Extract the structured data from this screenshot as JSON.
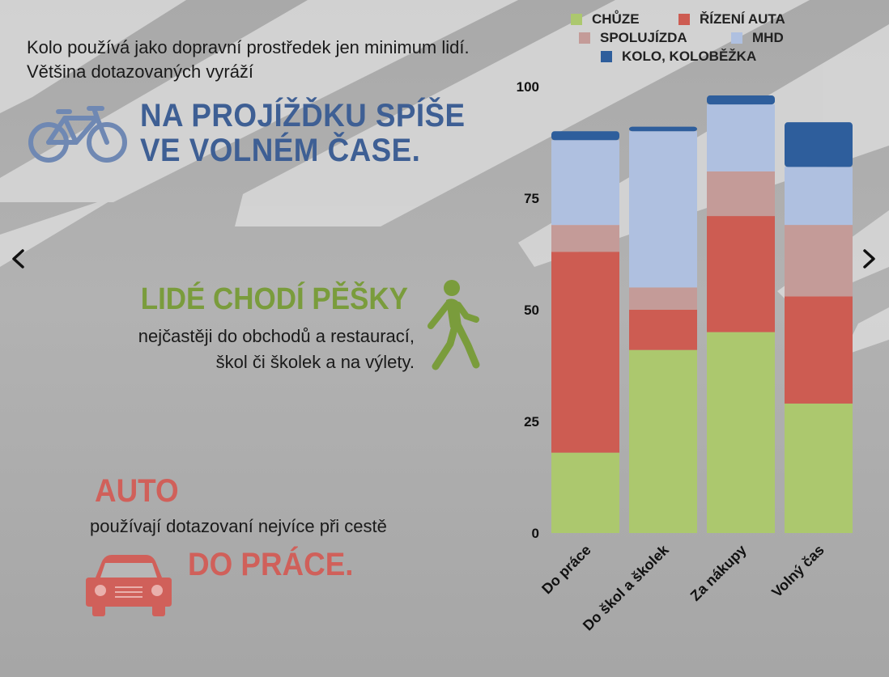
{
  "intro_text": "Kolo používá jako dopravní prostředek jen minimum lidí. Většina dotazovaných vyráží",
  "headline_bike_line1": "NA PROJÍŽĎKU SPÍŠE",
  "headline_bike_line2": "VE VOLNÉM ČASE.",
  "headline_walk": "LIDÉ CHODÍ PĚŠKY",
  "walk_text_line1": "nejčastěji do obchodů a restaurací,",
  "walk_text_line2": "škol či školek a na výlety.",
  "headline_auto": "AUTO",
  "auto_text": "používají dotazovaní nejvíce při cestě",
  "headline_auto2": "DO PRÁCE.",
  "icons": {
    "bike": "bicycle-icon",
    "walk": "walking-person-icon",
    "car": "car-icon",
    "prev": "chevron-left-icon",
    "next": "chevron-right-icon"
  },
  "colors": {
    "bike_headline": "#3e5f94",
    "walk_headline": "#7a9c3c",
    "auto_headline": "#d0605a"
  },
  "chart_data": {
    "type": "bar",
    "stacked": true,
    "categories": [
      "Do práce",
      "Do škol a školek",
      "Za nákupy",
      "Volný čas"
    ],
    "series": [
      {
        "name": "CHŮZE",
        "color": "#acc86e",
        "values": [
          18,
          41,
          45,
          29
        ]
      },
      {
        "name": "ŘÍZENÍ AUTA",
        "color": "#cd5c52",
        "values": [
          45,
          9,
          26,
          24
        ]
      },
      {
        "name": "SPOLUJÍZDA",
        "color": "#c49b98",
        "values": [
          6,
          5,
          10,
          16
        ]
      },
      {
        "name": "MHD",
        "color": "#afc0e0",
        "values": [
          19,
          35,
          15,
          13
        ]
      },
      {
        "name": "KOLO, KOLOBĚŽKA",
        "color": "#2e5e9c",
        "values": [
          2,
          1,
          2,
          10
        ]
      }
    ],
    "ylim": [
      0,
      100
    ],
    "yticks": [
      0,
      25,
      50,
      75,
      100
    ],
    "legend_position": "top"
  }
}
